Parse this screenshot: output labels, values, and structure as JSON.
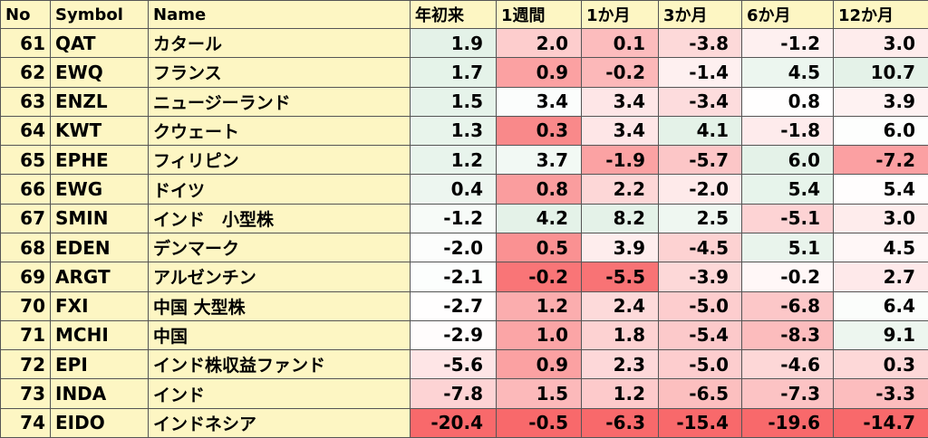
{
  "table": {
    "header": [
      "No",
      "Symbol",
      "Name",
      "年初来",
      "1週間",
      "1か月",
      "3か月",
      "6か月",
      "12か月"
    ],
    "rows": [
      [
        "61",
        "QAT",
        "カタール",
        "1.9",
        "2.0",
        "0.1",
        "-3.8",
        "-1.2",
        "3.0"
      ],
      [
        "62",
        "EWQ",
        "フランス",
        "1.7",
        "0.9",
        "-0.2",
        "-1.4",
        "4.5",
        "10.7"
      ],
      [
        "63",
        "ENZL",
        "ニュージーランド",
        "1.5",
        "3.4",
        "3.4",
        "-3.4",
        "0.8",
        "3.9"
      ],
      [
        "64",
        "KWT",
        "クウェート",
        "1.3",
        "0.3",
        "3.4",
        "4.1",
        "-1.8",
        "6.0"
      ],
      [
        "65",
        "EPHE",
        "フィリピン",
        "1.2",
        "3.7",
        "-1.9",
        "-5.7",
        "6.0",
        "-7.2"
      ],
      [
        "66",
        "EWG",
        "ドイツ",
        "0.4",
        "0.8",
        "2.2",
        "-2.0",
        "5.4",
        "5.4"
      ],
      [
        "67",
        "SMIN",
        "インド　小型株",
        "-1.2",
        "4.2",
        "8.2",
        "2.5",
        "-5.1",
        "3.0"
      ],
      [
        "68",
        "EDEN",
        "デンマーク",
        "-2.0",
        "0.5",
        "3.9",
        "-4.5",
        "5.1",
        "4.5"
      ],
      [
        "69",
        "ARGT",
        "アルゼンチン",
        "-2.1",
        "-0.2",
        "-5.5",
        "-3.9",
        "-0.2",
        "2.7"
      ],
      [
        "70",
        "FXI",
        "中国 大型株",
        "-2.7",
        "1.2",
        "2.4",
        "-5.0",
        "-6.8",
        "6.4"
      ],
      [
        "71",
        "MCHI",
        "中国",
        "-2.9",
        "1.0",
        "1.8",
        "-5.4",
        "-8.3",
        "9.1"
      ],
      [
        "72",
        "EPI",
        "インド株収益ファンド",
        "-5.6",
        "0.9",
        "2.3",
        "-5.0",
        "-4.6",
        "0.3"
      ],
      [
        "73",
        "INDA",
        "インド",
        "-7.8",
        "1.5",
        "1.2",
        "-6.5",
        "-7.3",
        "-3.3"
      ],
      [
        "74",
        "EIDO",
        "インドネシア",
        "-20.4",
        "-0.5",
        "-6.3",
        "-15.4",
        "-19.6",
        "-14.7"
      ]
    ]
  }
}
